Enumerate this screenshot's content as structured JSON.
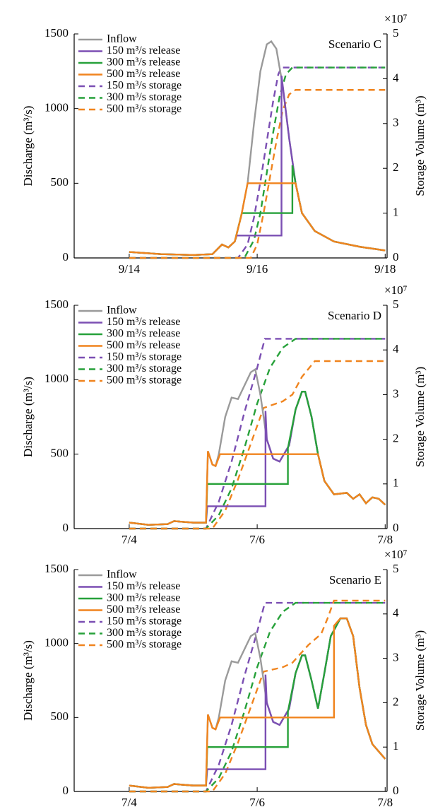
{
  "chart_data": [
    {
      "type": "line",
      "title": "Scenario C",
      "y_label": "Discharge (m³/s)",
      "y2_label": "Storage Volume (m³)",
      "y2_scale_label": "×10⁷",
      "xlim": [
        13.14,
        18.03
      ],
      "xticks": [
        {
          "value": 14,
          "label": "9/14"
        },
        {
          "value": 16,
          "label": "9/16"
        },
        {
          "value": 18,
          "label": "9/18"
        }
      ],
      "ylim": [
        0,
        1500
      ],
      "yticks": [
        0,
        500,
        1000,
        1500
      ],
      "y2lim": [
        0,
        5
      ],
      "y2ticks": [
        0,
        1,
        2,
        3,
        4,
        5
      ],
      "legend": "upper left",
      "series": [
        {
          "name": "Inflow",
          "color": "#9a9a9a",
          "style": "solid",
          "x": [
            14.0,
            14.5,
            15.0,
            15.3,
            15.45,
            15.55,
            15.65,
            15.75,
            15.85,
            15.95,
            16.05,
            16.15,
            16.22,
            16.3,
            16.4,
            16.5,
            16.6,
            16.7,
            16.9,
            17.2,
            17.6,
            18.0
          ],
          "values": [
            40,
            25,
            20,
            25,
            90,
            70,
            110,
            280,
            500,
            900,
            1250,
            1430,
            1450,
            1400,
            1150,
            800,
            500,
            300,
            180,
            110,
            75,
            50
          ]
        },
        {
          "name": "150 m³/s release",
          "color": "#7b4fb3",
          "style": "solid",
          "x": [
            14.0,
            14.5,
            15.0,
            15.3,
            15.45,
            15.55,
            15.65,
            15.68,
            16.38,
            16.38,
            16.4,
            16.5,
            16.6,
            16.7,
            16.9,
            17.2,
            17.6,
            18.0
          ],
          "values": [
            40,
            25,
            20,
            25,
            90,
            70,
            110,
            150,
            150,
            1220,
            1150,
            800,
            500,
            300,
            180,
            110,
            75,
            50
          ]
        },
        {
          "name": "300 m³/s release",
          "color": "#27a13a",
          "style": "solid",
          "x": [
            14.0,
            14.5,
            15.0,
            15.3,
            15.45,
            15.55,
            15.65,
            15.76,
            16.55,
            16.55,
            16.6,
            16.7,
            16.9,
            17.2,
            17.6,
            18.0
          ],
          "values": [
            40,
            25,
            20,
            25,
            90,
            70,
            110,
            300,
            300,
            620,
            500,
            300,
            180,
            110,
            75,
            50
          ]
        },
        {
          "name": "500 m³/s release",
          "color": "#f0841e",
          "style": "solid",
          "x": [
            14.0,
            14.5,
            15.0,
            15.3,
            15.45,
            15.55,
            15.65,
            15.75,
            15.85,
            16.6,
            16.7,
            16.9,
            17.2,
            17.6,
            18.0
          ],
          "values": [
            40,
            25,
            20,
            25,
            90,
            70,
            110,
            280,
            500,
            500,
            300,
            180,
            110,
            75,
            50
          ]
        },
        {
          "name": "150 m³/s storage",
          "color": "#7b4fb3",
          "style": "dashed",
          "axis": "y2",
          "x": [
            14.0,
            15.7,
            15.85,
            15.95,
            16.05,
            16.15,
            16.25,
            16.33,
            16.38,
            18.0
          ],
          "values": [
            0,
            0,
            0.3,
            0.9,
            1.7,
            2.6,
            3.5,
            4.1,
            4.25,
            4.25
          ]
        },
        {
          "name": "300 m³/s storage",
          "color": "#27a13a",
          "style": "dashed",
          "axis": "y2",
          "x": [
            14.0,
            15.8,
            15.95,
            16.05,
            16.15,
            16.25,
            16.35,
            16.45,
            16.55,
            18.0
          ],
          "values": [
            0,
            0,
            0.4,
            1.0,
            1.9,
            2.8,
            3.6,
            4.1,
            4.25,
            4.25
          ]
        },
        {
          "name": "500 m³/s storage",
          "color": "#f0841e",
          "style": "dashed",
          "axis": "y2",
          "x": [
            14.0,
            15.9,
            16.0,
            16.1,
            16.2,
            16.3,
            16.4,
            16.5,
            16.6,
            18.0
          ],
          "values": [
            0,
            0,
            0.3,
            1.0,
            1.8,
            2.6,
            3.3,
            3.65,
            3.75,
            3.75
          ]
        }
      ]
    },
    {
      "type": "line",
      "title": "Scenario D",
      "y_label": "Discharge (m³/s)",
      "y2_label": "Storage Volume (m³)",
      "y2_scale_label": "×10⁷",
      "xlim": [
        3.14,
        8.03
      ],
      "xticks": [
        {
          "value": 4,
          "label": "7/4"
        },
        {
          "value": 6,
          "label": "7/6"
        },
        {
          "value": 8,
          "label": "7/8"
        }
      ],
      "ylim": [
        0,
        1500
      ],
      "yticks": [
        0,
        500,
        1000,
        1500
      ],
      "y2lim": [
        0,
        5
      ],
      "y2ticks": [
        0,
        1,
        2,
        3,
        4,
        5
      ],
      "legend": "upper left",
      "series": [
        {
          "name": "Inflow",
          "color": "#9a9a9a",
          "style": "solid",
          "x": [
            4.0,
            4.3,
            4.6,
            4.7,
            5.0,
            5.2,
            5.23,
            5.3,
            5.35,
            5.4,
            5.5,
            5.6,
            5.7,
            5.8,
            5.9,
            5.97,
            6.05,
            6.15,
            6.25,
            6.35,
            6.5,
            6.6,
            6.7,
            6.75,
            6.85,
            6.95,
            7.05,
            7.2,
            7.4,
            7.5,
            7.6,
            7.7,
            7.8,
            7.9,
            8.0
          ],
          "values": [
            40,
            25,
            30,
            50,
            40,
            40,
            520,
            430,
            420,
            500,
            750,
            880,
            870,
            960,
            1050,
            1070,
            900,
            600,
            470,
            450,
            560,
            800,
            920,
            920,
            750,
            500,
            320,
            230,
            240,
            200,
            230,
            170,
            210,
            200,
            160
          ]
        },
        {
          "name": "150 m³/s release",
          "color": "#7b4fb3",
          "style": "solid",
          "x": [
            4.0,
            4.3,
            4.6,
            4.7,
            5.0,
            5.2,
            5.22,
            6.13,
            6.13,
            6.15,
            6.25,
            6.35,
            6.5,
            6.6,
            6.7,
            6.75,
            6.85,
            6.95,
            7.05,
            7.2,
            7.4,
            7.5,
            7.6,
            7.7,
            7.8,
            7.9,
            8.0
          ],
          "values": [
            40,
            25,
            30,
            50,
            40,
            40,
            150,
            150,
            790,
            600,
            470,
            450,
            560,
            800,
            920,
            920,
            750,
            500,
            320,
            230,
            240,
            200,
            230,
            170,
            210,
            200,
            160
          ]
        },
        {
          "name": "300 m³/s release",
          "color": "#27a13a",
          "style": "solid",
          "x": [
            4.0,
            4.3,
            4.6,
            4.7,
            5.0,
            5.2,
            5.22,
            6.48,
            6.48,
            6.6,
            6.7,
            6.75,
            6.85,
            6.95,
            7.05,
            7.2,
            7.4,
            7.5,
            7.6,
            7.7,
            7.8,
            7.9,
            8.0
          ],
          "values": [
            40,
            25,
            30,
            50,
            40,
            40,
            300,
            300,
            540,
            800,
            920,
            920,
            750,
            500,
            320,
            230,
            240,
            200,
            230,
            170,
            210,
            200,
            160
          ]
        },
        {
          "name": "500 m³/s release",
          "color": "#f0841e",
          "style": "solid",
          "x": [
            4.0,
            4.3,
            4.6,
            4.7,
            5.0,
            5.2,
            5.23,
            5.3,
            5.35,
            5.42,
            6.95,
            7.05,
            7.2,
            7.4,
            7.5,
            7.6,
            7.7,
            7.8,
            7.9,
            8.0
          ],
          "values": [
            40,
            25,
            30,
            50,
            40,
            40,
            520,
            430,
            420,
            500,
            500,
            320,
            230,
            240,
            200,
            230,
            170,
            210,
            200,
            160
          ]
        },
        {
          "name": "150 m³/s storage",
          "color": "#7b4fb3",
          "style": "dashed",
          "axis": "y2",
          "x": [
            4.0,
            5.2,
            5.4,
            5.6,
            5.8,
            6.0,
            6.12,
            8.0
          ],
          "values": [
            0,
            0,
            0.6,
            1.5,
            2.6,
            3.6,
            4.25,
            4.25
          ]
        },
        {
          "name": "300 m³/s storage",
          "color": "#27a13a",
          "style": "dashed",
          "axis": "y2",
          "x": [
            4.0,
            5.2,
            5.4,
            5.6,
            5.8,
            6.0,
            6.2,
            6.4,
            6.6,
            8.0
          ],
          "values": [
            0,
            0,
            0.3,
            0.9,
            1.8,
            2.8,
            3.6,
            4.05,
            4.25,
            4.25
          ]
        },
        {
          "name": "500 m³/s storage",
          "color": "#f0841e",
          "style": "dashed",
          "axis": "y2",
          "x": [
            4.0,
            5.3,
            5.5,
            5.7,
            5.9,
            6.1,
            6.4,
            6.55,
            6.7,
            6.9,
            8.0
          ],
          "values": [
            0,
            0,
            0.4,
            1.1,
            1.9,
            2.7,
            2.85,
            3.0,
            3.4,
            3.75,
            3.75
          ]
        }
      ]
    },
    {
      "type": "line",
      "title": "Scenario E",
      "y_label": "Discharge (m³/s)",
      "y2_label": "Storage Volume (m³)",
      "y2_scale_label": "×10⁷",
      "xlim": [
        3.14,
        8.03
      ],
      "xticks": [
        {
          "value": 4,
          "label": "7/4"
        },
        {
          "value": 6,
          "label": "7/6"
        },
        {
          "value": 8,
          "label": "7/8"
        }
      ],
      "ylim": [
        0,
        1500
      ],
      "yticks": [
        0,
        500,
        1000,
        1500
      ],
      "y2lim": [
        0,
        5
      ],
      "y2ticks": [
        0,
        1,
        2,
        3,
        4,
        5
      ],
      "legend": "upper left",
      "series": [
        {
          "name": "Inflow",
          "color": "#9a9a9a",
          "style": "solid",
          "x": [
            4.0,
            4.3,
            4.6,
            4.7,
            5.0,
            5.2,
            5.23,
            5.3,
            5.35,
            5.4,
            5.5,
            5.6,
            5.7,
            5.8,
            5.9,
            5.97,
            6.05,
            6.15,
            6.25,
            6.35,
            6.5,
            6.6,
            6.7,
            6.75,
            6.85,
            6.95,
            7.05,
            7.15,
            7.3,
            7.4,
            7.5,
            7.6,
            7.7,
            7.8,
            8.0
          ],
          "values": [
            40,
            25,
            30,
            50,
            40,
            40,
            520,
            430,
            420,
            500,
            750,
            880,
            870,
            960,
            1050,
            1070,
            900,
            600,
            470,
            450,
            560,
            800,
            920,
            920,
            750,
            560,
            800,
            1050,
            1170,
            1170,
            1050,
            700,
            450,
            320,
            220
          ]
        },
        {
          "name": "150 m³/s release",
          "color": "#7b4fb3",
          "style": "solid",
          "x": [
            4.0,
            4.3,
            4.6,
            4.7,
            5.0,
            5.2,
            5.22,
            6.13,
            6.13,
            6.15,
            6.25,
            6.35,
            6.5,
            6.6,
            6.7,
            6.75,
            6.85,
            6.95,
            7.05,
            7.15,
            7.3,
            7.4,
            7.5,
            7.6,
            7.7,
            7.8,
            8.0
          ],
          "values": [
            40,
            25,
            30,
            50,
            40,
            40,
            150,
            150,
            790,
            600,
            470,
            450,
            560,
            800,
            920,
            920,
            750,
            560,
            800,
            1050,
            1170,
            1170,
            1050,
            700,
            450,
            320,
            220
          ]
        },
        {
          "name": "300 m³/s release",
          "color": "#27a13a",
          "style": "solid",
          "x": [
            4.0,
            4.3,
            4.6,
            4.7,
            5.0,
            5.2,
            5.22,
            6.48,
            6.48,
            6.6,
            6.7,
            6.75,
            6.85,
            6.95,
            7.05,
            7.15,
            7.3,
            7.4,
            7.5,
            7.6,
            7.7,
            7.8,
            8.0
          ],
          "values": [
            40,
            25,
            30,
            50,
            40,
            40,
            300,
            300,
            540,
            800,
            920,
            920,
            750,
            560,
            800,
            1050,
            1170,
            1170,
            1050,
            700,
            450,
            320,
            220
          ]
        },
        {
          "name": "500 m³/s release",
          "color": "#f0841e",
          "style": "solid",
          "x": [
            4.0,
            4.3,
            4.6,
            4.7,
            5.0,
            5.2,
            5.23,
            5.3,
            5.35,
            5.42,
            7.2,
            7.2,
            7.3,
            7.4,
            7.5,
            7.6,
            7.7,
            7.8,
            8.0
          ],
          "values": [
            40,
            25,
            30,
            50,
            40,
            40,
            520,
            430,
            420,
            500,
            500,
            1120,
            1170,
            1170,
            1050,
            700,
            450,
            320,
            220
          ]
        },
        {
          "name": "150 m³/s storage",
          "color": "#7b4fb3",
          "style": "dashed",
          "axis": "y2",
          "x": [
            4.0,
            5.2,
            5.4,
            5.6,
            5.8,
            6.0,
            6.12,
            8.0
          ],
          "values": [
            0,
            0,
            0.6,
            1.5,
            2.6,
            3.6,
            4.25,
            4.25
          ]
        },
        {
          "name": "300 m³/s storage",
          "color": "#27a13a",
          "style": "dashed",
          "axis": "y2",
          "x": [
            4.0,
            5.2,
            5.4,
            5.6,
            5.8,
            6.0,
            6.2,
            6.4,
            6.6,
            8.0
          ],
          "values": [
            0,
            0,
            0.3,
            0.9,
            1.8,
            2.8,
            3.6,
            4.05,
            4.25,
            4.25
          ]
        },
        {
          "name": "500 m³/s storage",
          "color": "#f0841e",
          "style": "dashed",
          "axis": "y2",
          "x": [
            4.0,
            5.3,
            5.5,
            5.7,
            5.9,
            6.1,
            6.4,
            6.55,
            6.8,
            7.0,
            7.1,
            7.2,
            8.0
          ],
          "values": [
            0,
            0,
            0.4,
            1.1,
            1.9,
            2.7,
            2.8,
            2.9,
            3.3,
            3.55,
            3.9,
            4.3,
            4.3
          ]
        }
      ]
    }
  ]
}
